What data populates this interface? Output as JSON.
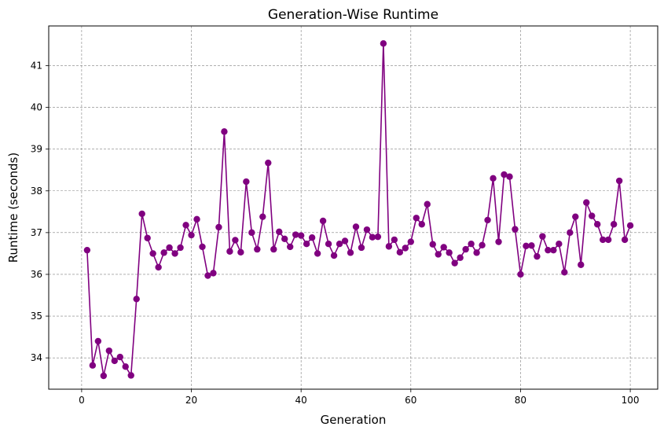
{
  "chart_data": {
    "type": "line",
    "title": "Generation-Wise Runtime",
    "xlabel": "Generation",
    "ylabel": "Runtime (seconds)",
    "xlim": [
      -6,
      105
    ],
    "ylim": [
      33.25,
      41.95
    ],
    "xticks": [
      0,
      20,
      40,
      60,
      80,
      100
    ],
    "yticks": [
      34,
      35,
      36,
      37,
      38,
      39,
      40,
      41
    ],
    "grid": true,
    "marker": "circle",
    "color": "#800080",
    "x": [
      1,
      2,
      3,
      4,
      5,
      6,
      7,
      8,
      9,
      10,
      11,
      12,
      13,
      14,
      15,
      16,
      17,
      18,
      19,
      20,
      21,
      22,
      23,
      24,
      25,
      26,
      27,
      28,
      29,
      30,
      31,
      32,
      33,
      34,
      35,
      36,
      37,
      38,
      39,
      40,
      41,
      42,
      43,
      44,
      45,
      46,
      47,
      48,
      49,
      50,
      51,
      52,
      53,
      54,
      55,
      56,
      57,
      58,
      59,
      60,
      61,
      62,
      63,
      64,
      65,
      66,
      67,
      68,
      69,
      70,
      71,
      72,
      73,
      74,
      75,
      76,
      77,
      78,
      79,
      80,
      81,
      82,
      83,
      84,
      85,
      86,
      87,
      88,
      89,
      90,
      91,
      92,
      93,
      94,
      95,
      96,
      97,
      98,
      99,
      100
    ],
    "y": [
      36.58,
      33.82,
      34.4,
      33.57,
      34.17,
      33.93,
      34.02,
      33.79,
      33.58,
      35.41,
      37.45,
      36.87,
      36.5,
      36.17,
      36.52,
      36.64,
      36.5,
      36.64,
      37.18,
      36.94,
      37.32,
      36.66,
      35.97,
      36.03,
      37.13,
      39.42,
      36.55,
      36.82,
      36.53,
      38.22,
      37.0,
      36.6,
      37.38,
      38.67,
      36.6,
      37.02,
      36.85,
      36.66,
      36.95,
      36.93,
      36.73,
      36.88,
      36.5,
      37.28,
      36.73,
      36.45,
      36.73,
      36.8,
      36.52,
      37.14,
      36.64,
      37.07,
      36.89,
      36.9,
      41.53,
      36.67,
      36.83,
      36.53,
      36.63,
      36.78,
      37.35,
      37.2,
      37.68,
      36.72,
      36.48,
      36.65,
      36.52,
      36.27,
      36.4,
      36.6,
      36.73,
      36.52,
      36.7,
      37.3,
      38.3,
      36.78,
      38.39,
      38.34,
      37.08,
      36.0,
      36.68,
      36.69,
      36.43,
      36.91,
      36.58,
      36.58,
      36.73,
      36.05,
      37.0,
      37.38,
      36.23,
      37.72,
      37.4,
      37.2,
      36.83,
      36.83,
      37.2,
      38.24,
      36.83,
      37.17
    ]
  }
}
